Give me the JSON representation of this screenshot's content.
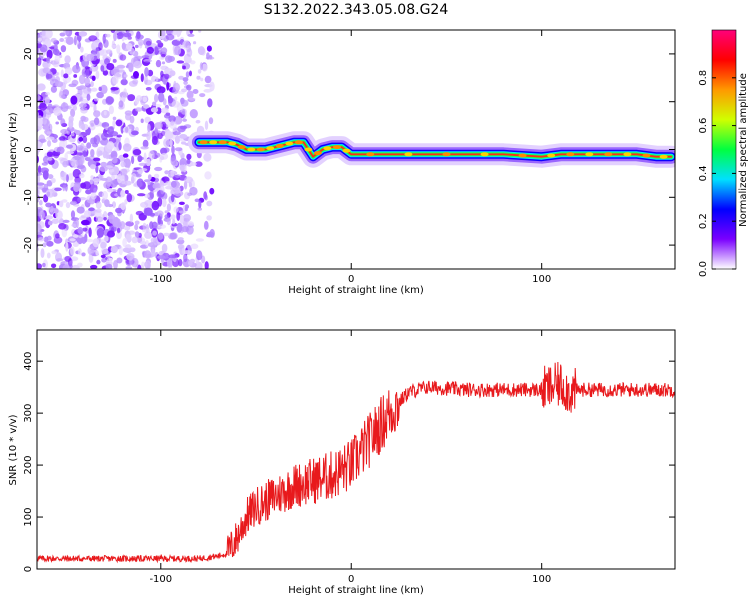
{
  "title": "S132.2022.343.05.08.G24",
  "chart_data": [
    {
      "type": "heatmap",
      "xlabel": "Height of straight line (km)",
      "ylabel": "Frequency (Hz)",
      "xlim": [
        -165,
        170
      ],
      "ylim": [
        -25,
        25
      ],
      "xticks": [
        -100,
        0,
        100
      ],
      "yticks": [
        -20,
        -10,
        0,
        10,
        20
      ],
      "colorbar": {
        "label": "Normalized spectral amplitude",
        "range": [
          0,
          1
        ],
        "ticks": [
          "0.0",
          "0.2",
          "0.4",
          "0.6",
          "0.8"
        ],
        "colors": [
          "#ffffff",
          "#7a00ff",
          "#0000ff",
          "#00e0ff",
          "#00ff40",
          "#d0ff00",
          "#ff9900",
          "#ff0000",
          "#ff007a"
        ]
      },
      "noise_region_x": [
        -165,
        -75
      ],
      "frequency_trace": {
        "x": [
          -80,
          -75,
          -70,
          -65,
          -60,
          -55,
          -50,
          -45,
          -40,
          -35,
          -30,
          -25,
          -20,
          -15,
          -10,
          -5,
          0,
          20,
          40,
          60,
          80,
          100,
          110,
          120,
          130,
          140,
          150,
          160,
          168
        ],
        "y": [
          1.5,
          1.5,
          1.5,
          1.5,
          1.0,
          0.0,
          0.0,
          0.0,
          0.5,
          1.0,
          1.5,
          1.5,
          -1.5,
          0.0,
          0.5,
          0.5,
          -1.0,
          -1.0,
          -1.0,
          -1.0,
          -1.0,
          -1.5,
          -1.0,
          -1.0,
          -1.0,
          -1.0,
          -1.0,
          -1.5,
          -1.5
        ]
      }
    },
    {
      "type": "line",
      "xlabel": "Height of straight line (km)",
      "ylabel": "SNR (10 * v/v)",
      "xlim": [
        -165,
        170
      ],
      "ylim": [
        0,
        460
      ],
      "xticks": [
        -100,
        0,
        100
      ],
      "yticks": [
        0,
        100,
        200,
        300,
        400
      ],
      "color": "#e8191c",
      "series": [
        {
          "x": [
            -165,
            -100,
            -80,
            -70,
            -65,
            -60,
            -55,
            -50,
            -40,
            -30,
            -20,
            -10,
            0,
            10,
            20,
            30,
            40,
            60,
            80,
            100,
            105,
            110,
            115,
            120,
            140,
            160,
            170
          ],
          "y": [
            20,
            20,
            20,
            25,
            30,
            60,
            100,
            120,
            140,
            160,
            170,
            180,
            200,
            250,
            300,
            340,
            350,
            345,
            345,
            345,
            350,
            355,
            340,
            345,
            345,
            345,
            345
          ]
        }
      ]
    }
  ]
}
